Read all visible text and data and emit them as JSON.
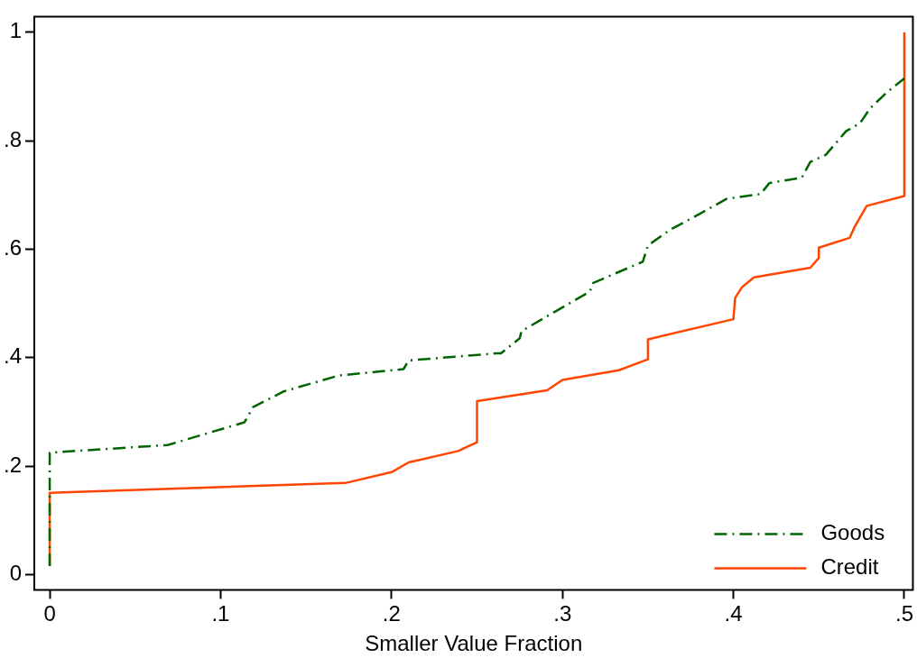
{
  "chart_data": {
    "type": "line",
    "xlabel": "Smaller Value Fraction",
    "xlim": [
      -0.009,
      0.505
    ],
    "ylim": [
      -0.028,
      1.029
    ],
    "xticks": [
      0,
      {
        "value": 0.1,
        "label": ".1"
      },
      {
        "value": 0.2,
        "label": ".2"
      },
      {
        "value": 0.3,
        "label": ".3"
      },
      {
        "value": 0.4,
        "label": ".4"
      },
      {
        "value": 0.5,
        "label": ".5"
      }
    ],
    "yticks": [
      0,
      {
        "value": 0.2,
        "label": ".2"
      },
      {
        "value": 0.4,
        "label": ".4"
      },
      {
        "value": 0.6,
        "label": ".6"
      },
      {
        "value": 0.8,
        "label": ".8"
      },
      1
    ],
    "grid": false,
    "legend": "bottom right",
    "marker": "none",
    "series": [
      {
        "name": "Goods",
        "color": "#006400",
        "line_style": "dashed",
        "x": [
          0,
          0,
          0.069,
          0.114,
          0.119,
          0.137,
          0.169,
          0.207,
          0.21,
          0.261,
          0.264,
          0.275,
          0.276,
          0.316,
          0.318,
          0.347,
          0.35,
          0.363,
          0.379,
          0.396,
          0.416,
          0.421,
          0.44,
          0.445,
          0.454,
          0.466,
          0.474,
          0.48,
          0.49,
          0.5
        ],
        "values": [
          0.016,
          0.225,
          0.239,
          0.281,
          0.309,
          0.338,
          0.367,
          0.379,
          0.395,
          0.408,
          0.408,
          0.436,
          0.449,
          0.522,
          0.538,
          0.577,
          0.607,
          0.636,
          0.663,
          0.693,
          0.702,
          0.722,
          0.732,
          0.761,
          0.774,
          0.818,
          0.832,
          0.86,
          0.89,
          0.915
        ]
      },
      {
        "name": "Credit",
        "color": "#ff4500",
        "line_style": "solid",
        "x": [
          0,
          0,
          0.173,
          0.2,
          0.21,
          0.239,
          0.25,
          0.25,
          0.291,
          0.3,
          0.333,
          0.35,
          0.35,
          0.4,
          0.401,
          0.405,
          0.412,
          0.445,
          0.45,
          0.45,
          0.468,
          0.471,
          0.478,
          0.5,
          0.5
        ],
        "values": [
          0.016,
          0.151,
          0.169,
          0.189,
          0.207,
          0.228,
          0.244,
          0.32,
          0.34,
          0.359,
          0.377,
          0.397,
          0.434,
          0.471,
          0.51,
          0.53,
          0.548,
          0.566,
          0.584,
          0.603,
          0.621,
          0.642,
          0.68,
          0.698,
          1.0
        ]
      }
    ]
  }
}
